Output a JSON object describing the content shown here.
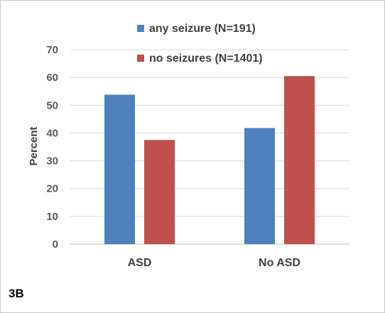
{
  "panel_label": "3B",
  "colors": {
    "series1": "#4f81bd",
    "series2": "#c0504d",
    "grid": "#d9d9d9",
    "axis": "#bfbfbf"
  },
  "chart_data": {
    "type": "bar",
    "title": "",
    "xlabel": "",
    "ylabel": "Percent",
    "categories": [
      "ASD",
      "No ASD"
    ],
    "ylim": [
      0,
      70
    ],
    "yticks": [
      "0",
      "10",
      "20",
      "30",
      "40",
      "50",
      "60",
      "70"
    ],
    "grid": true,
    "legend_position": "top",
    "series": [
      {
        "name": "any seizure (N=191)",
        "values": [
          53.8,
          41.8
        ]
      },
      {
        "name": "no seizures (N=1401)",
        "values": [
          37.5,
          60.5
        ]
      }
    ]
  }
}
